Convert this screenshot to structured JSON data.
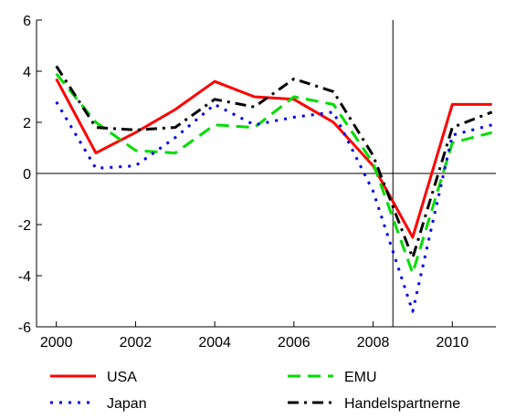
{
  "chart_data": {
    "type": "line",
    "x_ticks": [
      2000,
      2002,
      2004,
      2006,
      2008,
      2010
    ],
    "y_ticks": [
      -6,
      -4,
      -2,
      0,
      2,
      4,
      6
    ],
    "xlim": [
      1999.5,
      2011.1
    ],
    "ylim": [
      -6,
      6
    ],
    "vertical_marker_x": 2008.5,
    "grid": false,
    "legend_position": "bottom",
    "series": [
      {
        "name": "USA",
        "color": "#ff0000",
        "style": "solid",
        "x": [
          2000,
          2001,
          2002,
          2003,
          2004,
          2005,
          2006,
          2007,
          2008,
          2009,
          2010,
          2011
        ],
        "values": [
          3.7,
          0.8,
          1.6,
          2.5,
          3.6,
          3.0,
          2.9,
          2.0,
          0.3,
          -2.5,
          2.7,
          2.7
        ]
      },
      {
        "name": "EMU",
        "color": "#00dd00",
        "style": "dashed",
        "x": [
          2000,
          2001,
          2002,
          2003,
          2004,
          2005,
          2006,
          2007,
          2008,
          2009,
          2010,
          2011
        ],
        "values": [
          3.9,
          2.0,
          0.9,
          0.8,
          1.9,
          1.8,
          3.0,
          2.7,
          0.4,
          -3.9,
          1.2,
          1.6
        ]
      },
      {
        "name": "Japan",
        "color": "#0000ee",
        "style": "dotted",
        "x": [
          2000,
          2001,
          2002,
          2003,
          2004,
          2005,
          2006,
          2007,
          2008,
          2009,
          2010,
          2011
        ],
        "values": [
          2.8,
          0.2,
          0.3,
          1.4,
          2.7,
          1.9,
          2.2,
          2.4,
          -0.7,
          -5.4,
          1.5,
          1.9
        ]
      },
      {
        "name": "Handelspartnerne",
        "color": "#000000",
        "style": "dashdot",
        "x": [
          2000,
          2001,
          2002,
          2003,
          2004,
          2005,
          2006,
          2007,
          2008,
          2009,
          2010,
          2011
        ],
        "values": [
          4.2,
          1.8,
          1.7,
          1.8,
          2.9,
          2.6,
          3.7,
          3.2,
          0.7,
          -3.3,
          1.8,
          2.4
        ]
      }
    ]
  }
}
